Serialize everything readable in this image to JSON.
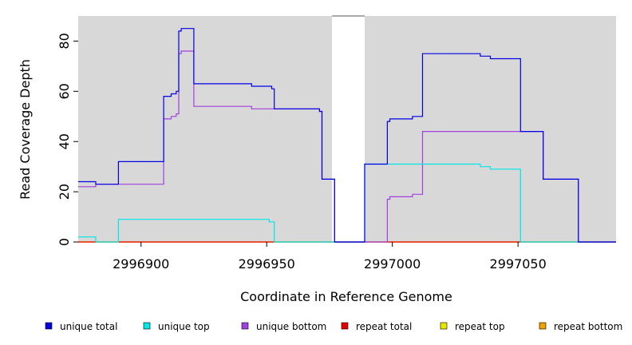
{
  "chart_data": {
    "type": "line",
    "step": true,
    "xlabel": "Coordinate in Reference Genome",
    "ylabel": "Read Coverage Depth",
    "xlim": [
      2996875,
      2997089
    ],
    "ylim": [
      0,
      90
    ],
    "x_ticks": [
      2996900,
      2996950,
      2997000,
      2997050
    ],
    "y_ticks": [
      0,
      20,
      40,
      60,
      80
    ],
    "grid": false,
    "background": "#d8d8d8",
    "gap_region": [
      2996976,
      2996989
    ],
    "series": [
      {
        "name": "unique total",
        "color": "#0000e6",
        "points": [
          [
            2996875,
            24
          ],
          [
            2996882,
            23
          ],
          [
            2996891,
            32
          ],
          [
            2996909,
            58
          ],
          [
            2996912,
            59
          ],
          [
            2996914,
            60
          ],
          [
            2996915,
            84
          ],
          [
            2996916,
            85
          ],
          [
            2996921,
            63
          ],
          [
            2996944,
            62
          ],
          [
            2996952,
            61
          ],
          [
            2996953,
            53
          ],
          [
            2996971,
            52
          ],
          [
            2996972,
            25
          ],
          [
            2996977,
            0
          ],
          [
            2996989,
            31
          ],
          [
            2996998,
            48
          ],
          [
            2996999,
            49
          ],
          [
            2997008,
            50
          ],
          [
            2997012,
            75
          ],
          [
            2997035,
            74
          ],
          [
            2997039,
            73
          ],
          [
            2997051,
            44
          ],
          [
            2997060,
            25
          ],
          [
            2997074,
            0
          ],
          [
            2997089,
            0
          ]
        ]
      },
      {
        "name": "unique top",
        "color": "#00e6e6",
        "points": [
          [
            2996875,
            2
          ],
          [
            2996882,
            0
          ],
          [
            2996891,
            9
          ],
          [
            2996951,
            8
          ],
          [
            2996953,
            0
          ],
          [
            2996977,
            0
          ],
          [
            2996989,
            31
          ],
          [
            2997035,
            30
          ],
          [
            2997039,
            29
          ],
          [
            2997051,
            0
          ],
          [
            2997089,
            0
          ]
        ]
      },
      {
        "name": "unique bottom",
        "color": "#a040e0",
        "points": [
          [
            2996875,
            22
          ],
          [
            2996882,
            23
          ],
          [
            2996909,
            49
          ],
          [
            2996912,
            50
          ],
          [
            2996914,
            51
          ],
          [
            2996915,
            75
          ],
          [
            2996916,
            76
          ],
          [
            2996921,
            54
          ],
          [
            2996944,
            53
          ],
          [
            2996953,
            53
          ],
          [
            2996971,
            52
          ],
          [
            2996972,
            25
          ],
          [
            2996977,
            0
          ],
          [
            2996989,
            0
          ],
          [
            2996998,
            17
          ],
          [
            2996999,
            18
          ],
          [
            2997008,
            19
          ],
          [
            2997012,
            44
          ],
          [
            2997051,
            44
          ],
          [
            2997060,
            25
          ],
          [
            2997074,
            0
          ],
          [
            2997089,
            0
          ]
        ]
      },
      {
        "name": "repeat total",
        "color": "#e60000",
        "points": [
          [
            2996875,
            0
          ],
          [
            2996977,
            0
          ],
          [
            2996989,
            0
          ],
          [
            2997089,
            0
          ]
        ]
      },
      {
        "name": "repeat top",
        "color": "#e6e600",
        "points": [
          [
            2996875,
            0
          ],
          [
            2996977,
            0
          ],
          [
            2996989,
            0
          ],
          [
            2997089,
            0
          ]
        ]
      },
      {
        "name": "repeat bottom",
        "color": "#f0a000",
        "points": [
          [
            2996875,
            0
          ],
          [
            2996977,
            0
          ],
          [
            2996989,
            0
          ],
          [
            2997089,
            0
          ]
        ]
      }
    ]
  }
}
